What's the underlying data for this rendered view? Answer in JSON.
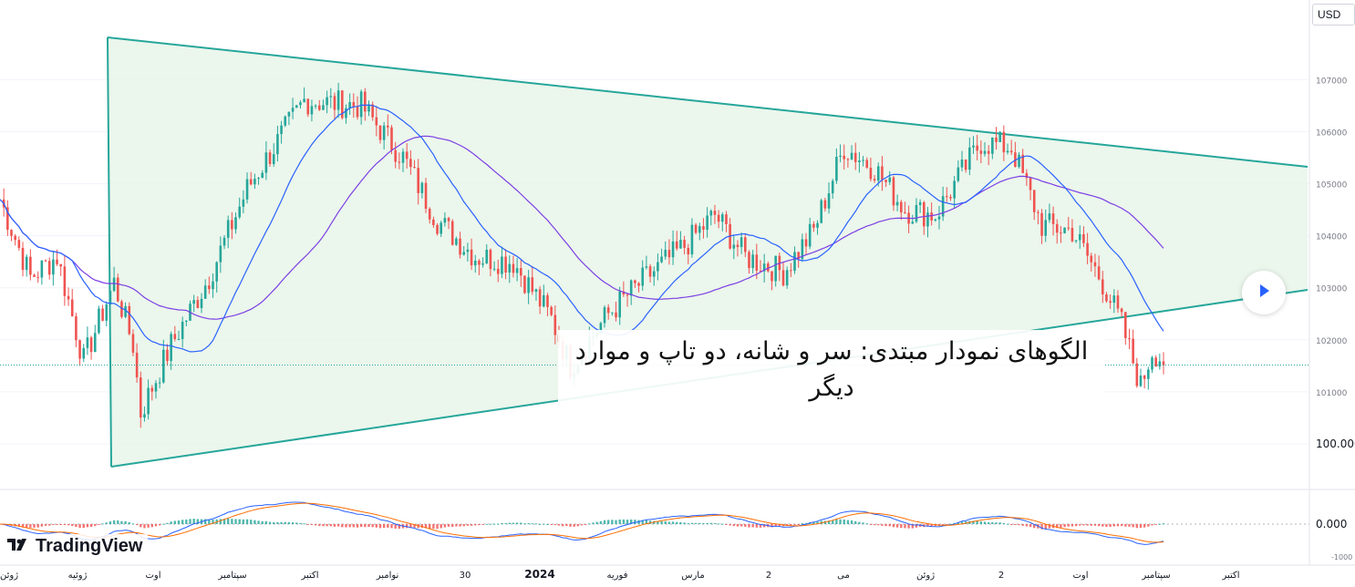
{
  "currency": "USD",
  "headline": "الگوهای نمودار مبتدی: سر و شانه، دو تاپ و موارد دیگر",
  "brand": "TradingView",
  "icons": {
    "brand_logo": "tradingview-logo-icon",
    "play": "play-icon"
  },
  "colors": {
    "triangle_fill": "#e8f5e9",
    "triangle_line": "#26a69a",
    "bull": "#26a69a",
    "bear": "#ef5350",
    "ma_fast": "#2962ff",
    "ma_slow": "#7b3fe4",
    "macd": "#2962ff",
    "signal": "#ff6d00"
  },
  "chart_data": {
    "type": "candlestick",
    "price_axis": {
      "ticks": [
        "107000",
        "106000",
        "105000",
        "104000",
        "103000",
        "102000",
        "101000",
        "100.000"
      ]
    },
    "x_axis": {
      "ticks": [
        "ژوئن",
        "ژوئیه",
        "اوت",
        "سپتامبر",
        "اکتبر",
        "نوامبر",
        "30",
        "2024",
        "فوریه",
        "مارس",
        "2",
        "می",
        "ژوئن",
        "2",
        "اوت",
        "سپتامبر",
        "اکتبر"
      ]
    },
    "indicator": {
      "type": "macd",
      "axis_ticks": [
        "0.000",
        "-1000"
      ]
    },
    "anchors": [
      [
        0,
        104.7
      ],
      [
        8,
        103.2
      ],
      [
        15,
        103.6
      ],
      [
        22,
        101.6
      ],
      [
        30,
        103.1
      ],
      [
        35,
        101.9
      ],
      [
        37,
        100.6
      ],
      [
        45,
        101.9
      ],
      [
        55,
        103.2
      ],
      [
        65,
        104.9
      ],
      [
        80,
        106.6
      ],
      [
        95,
        106.5
      ],
      [
        106,
        105.5
      ],
      [
        115,
        104.3
      ],
      [
        125,
        103.6
      ],
      [
        135,
        103.5
      ],
      [
        145,
        102.4
      ],
      [
        150,
        101.5
      ],
      [
        160,
        102.5
      ],
      [
        170,
        103.2
      ],
      [
        180,
        103.8
      ],
      [
        188,
        104.4
      ],
      [
        196,
        103.6
      ],
      [
        206,
        103.3
      ],
      [
        214,
        104.1
      ],
      [
        222,
        105.7
      ],
      [
        230,
        105.3
      ],
      [
        238,
        104.5
      ],
      [
        246,
        104.4
      ],
      [
        258,
        105.8
      ],
      [
        266,
        105.7
      ],
      [
        274,
        104.2
      ],
      [
        282,
        104.1
      ],
      [
        290,
        103.1
      ],
      [
        295,
        102.3
      ],
      [
        300,
        101.1
      ],
      [
        303,
        101.8
      ],
      [
        306,
        101.6
      ]
    ],
    "candle_count": 306
  }
}
